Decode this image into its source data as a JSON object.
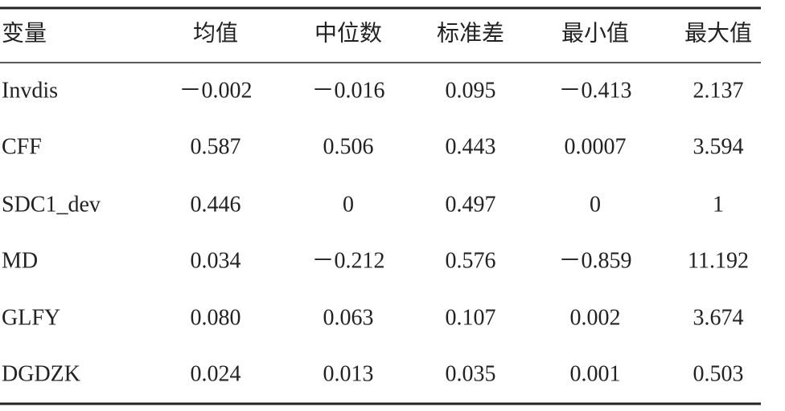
{
  "table": {
    "header": [
      "变量",
      "均值",
      "中位数",
      "标准差",
      "最小值",
      "最大值"
    ],
    "rows": [
      [
        "Invdis",
        "－0.002",
        "－0.016",
        "0.095",
        "－0.413",
        "2.137"
      ],
      [
        "CFF",
        "0.587",
        "0.506",
        "0.443",
        "0.0007",
        "3.594"
      ],
      [
        "SDC1_dev",
        "0.446",
        "0",
        "0.497",
        "0",
        "1"
      ],
      [
        "MD",
        "0.034",
        "－0.212",
        "0.576",
        "－0.859",
        "11.192"
      ],
      [
        "GLFY",
        "0.080",
        "0.063",
        "0.107",
        "0.002",
        "3.674"
      ],
      [
        "DGDZK",
        "0.024",
        "0.013",
        "0.035",
        "0.001",
        "0.503"
      ]
    ]
  }
}
